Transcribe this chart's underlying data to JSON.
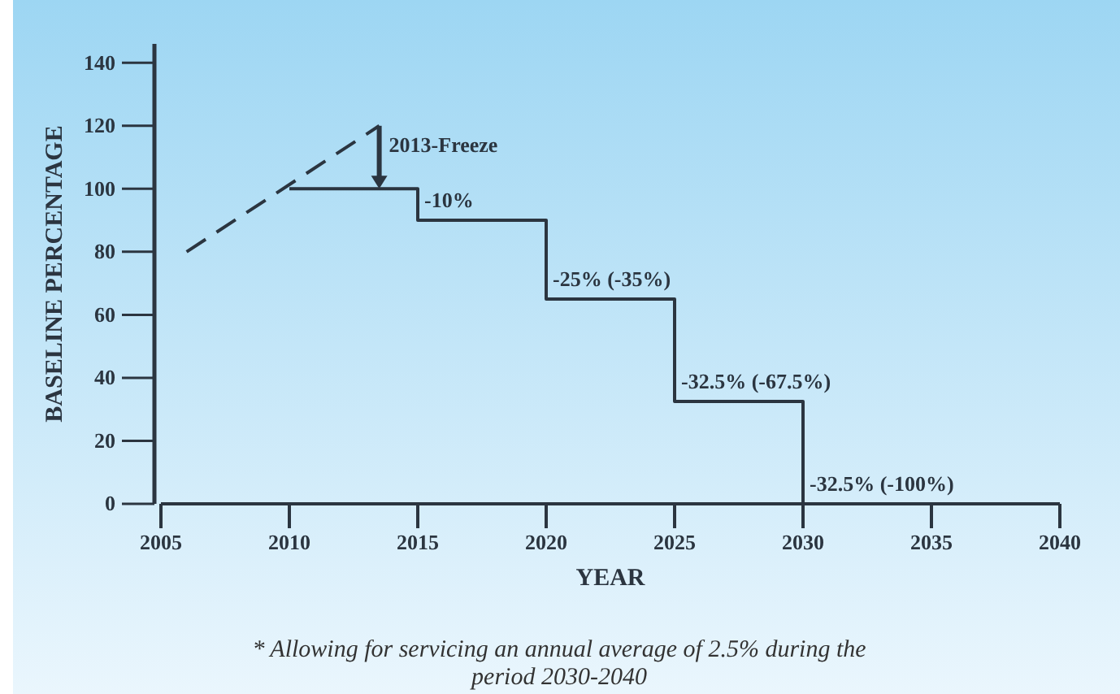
{
  "chart_data": {
    "type": "step",
    "xlabel": "YEAR",
    "ylabel": "BASELINE PERCENTAGE",
    "xlim": [
      2005,
      2040
    ],
    "xticks": [
      2005,
      2010,
      2015,
      2020,
      2025,
      2030,
      2035,
      2040
    ],
    "ylim": [
      0,
      146
    ],
    "yticks": [
      0,
      20,
      40,
      60,
      80,
      100,
      120,
      140
    ],
    "grid": false,
    "series": [
      {
        "type": "line",
        "color": "#2b3540",
        "line_style": "dashed",
        "x": [
          2006,
          2013.5
        ],
        "values": [
          80,
          120
        ]
      },
      {
        "color": "#2b3540",
        "line_style": "solid",
        "x": [
          2010,
          2015,
          2020,
          2025,
          2030
        ],
        "values": [
          100,
          90,
          65,
          32.5,
          0
        ]
      }
    ],
    "annotations": [
      {
        "text": "2013-Freeze",
        "x": 2013.5,
        "y": 120
      },
      {
        "text": "-10%",
        "x": 2015,
        "y": 90
      },
      {
        "text": "-25% (-35%)",
        "x": 2020,
        "y": 65
      },
      {
        "text": "-32.5% (-67.5%)",
        "x": 2025,
        "y": 32.5
      },
      {
        "text": "-32.5% (-100%)",
        "x": 2030,
        "y": 0
      },
      "* Allowing for servicing an annual average of 2.5% during the period 2030-2040"
    ]
  }
}
